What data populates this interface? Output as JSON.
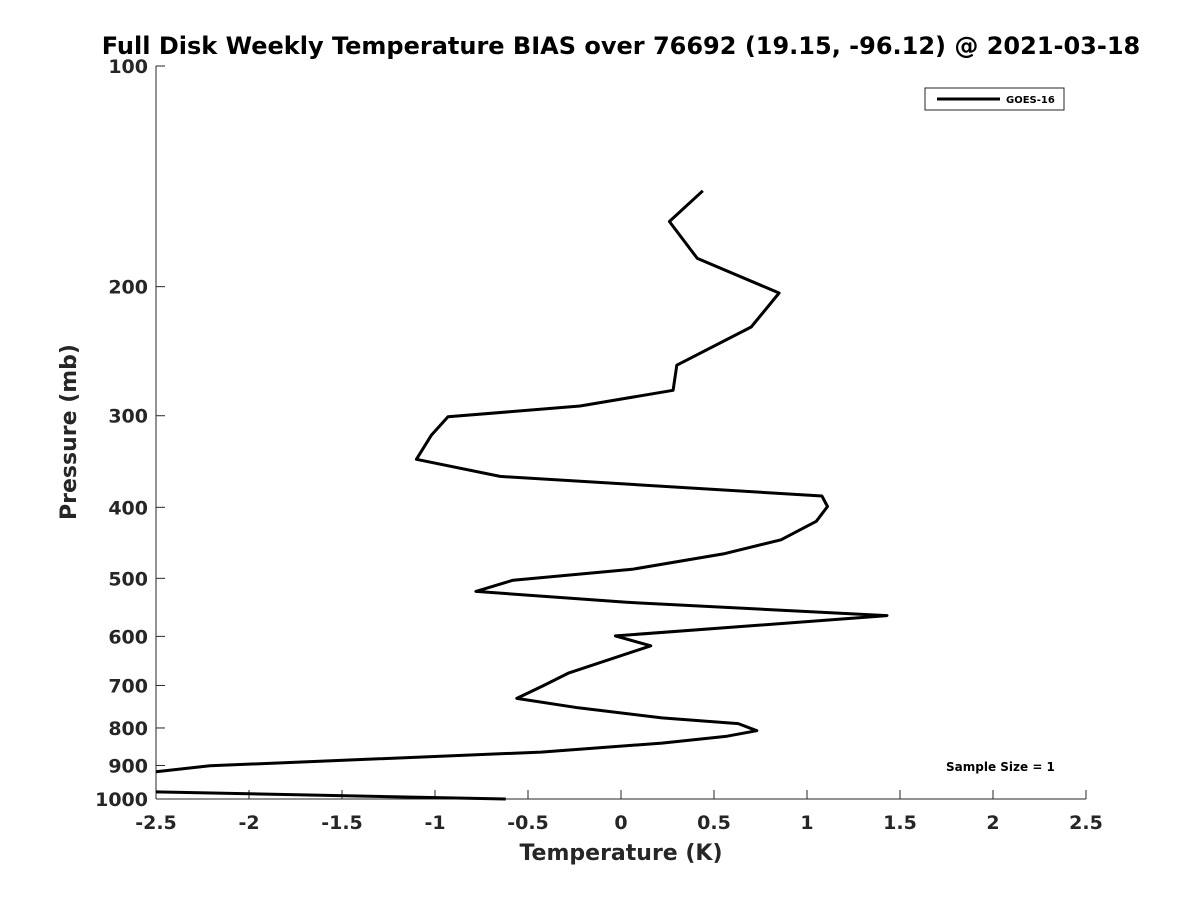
{
  "chart_data": {
    "type": "line",
    "title": "Full Disk Weekly Temperature BIAS over 76692 (19.15, -96.12) @ 2021-03-18",
    "xlabel": "Temperature (K)",
    "ylabel": "Pressure (mb)",
    "xlim": [
      -2.5,
      2.5
    ],
    "ylim": [
      100,
      1000
    ],
    "y_scale": "log",
    "y_reversed": true,
    "x_ticks": [
      -2.5,
      -2,
      -1.5,
      -1,
      -0.5,
      0,
      0.5,
      1,
      1.5,
      2,
      2.5
    ],
    "x_tick_labels": [
      "-2.5",
      "-2",
      "-1.5",
      "-1",
      "-0.5",
      "0",
      "0.5",
      "1",
      "1.5",
      "2",
      "2.5"
    ],
    "y_ticks": [
      100,
      200,
      300,
      400,
      500,
      600,
      700,
      800,
      900,
      1000
    ],
    "y_tick_labels": [
      "100",
      "200",
      "300",
      "400",
      "500",
      "600",
      "700",
      "800",
      "900",
      "1000"
    ],
    "grid": false,
    "legend_position": "top-right",
    "annotation": "Sample Size = 1",
    "series": [
      {
        "name": "GOES-16",
        "color": "#000000",
        "x": [
          0.44,
          0.26,
          0.41,
          0.85,
          0.7,
          0.3,
          0.28,
          -0.22,
          -0.93,
          -1.02,
          -1.1,
          -0.65,
          1.08,
          1.11,
          1.05,
          0.86,
          0.55,
          0.06,
          -0.58,
          -0.78,
          0.03,
          1.43,
          -0.03,
          0.16,
          -0.28,
          -0.42,
          -0.56,
          -0.23,
          0.22,
          0.63,
          0.73,
          0.57,
          0.22,
          -0.43,
          -2.21,
          -2.5
        ],
        "y": [
          148,
          163,
          183,
          204,
          227,
          256,
          277,
          291,
          301,
          319,
          344,
          363,
          386,
          399,
          418,
          443,
          463,
          486,
          503,
          521,
          539,
          562,
          599,
          618,
          673,
          701,
          729,
          751,
          775,
          789,
          807,
          821,
          839,
          863,
          901,
          918
        ]
      },
      {
        "name": "",
        "color": "#000000",
        "x": [
          -2.5,
          -0.62
        ],
        "y": [
          978,
          1000
        ]
      }
    ]
  }
}
